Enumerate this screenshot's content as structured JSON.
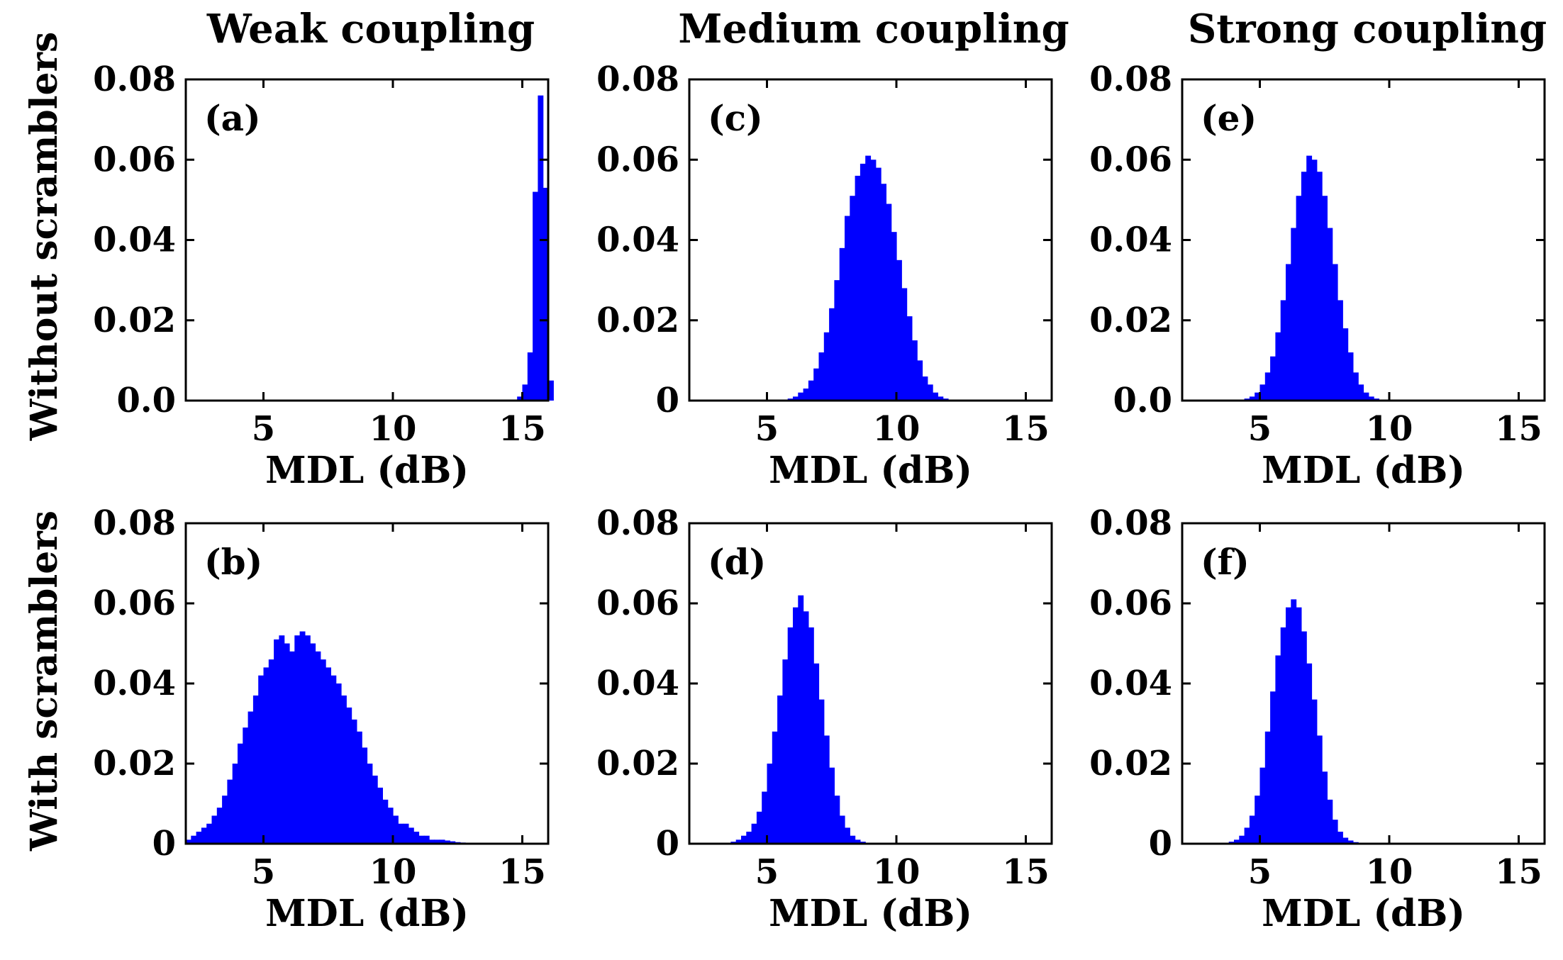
{
  "figure": {
    "column_titles": [
      "Weak coupling",
      "Medium coupling",
      "Strong coupling"
    ],
    "row_labels": [
      "Without scramblers",
      "With scramblers"
    ],
    "bar_color": "#0000ff"
  },
  "chart_data": [
    {
      "type": "bar",
      "panel": "(a)",
      "title": "",
      "xlabel": "MDL (dB)",
      "ylabel": "",
      "xlim": [
        2,
        16
      ],
      "ylim": [
        0,
        0.08
      ],
      "xticks": [
        "5",
        "10",
        "15"
      ],
      "yticks": [
        "0.0",
        "0.02",
        "0.04",
        "0.06",
        "0.08"
      ],
      "bin_width": 0.2,
      "bin_start": 14.8,
      "values": [
        0.001,
        0.004,
        0.012,
        0.052,
        0.076,
        0.053,
        0.005
      ]
    },
    {
      "type": "bar",
      "panel": "(b)",
      "title": "",
      "xlabel": "MDL (dB)",
      "ylabel": "",
      "xlim": [
        2,
        16
      ],
      "ylim": [
        0,
        0.08
      ],
      "xticks": [
        "5",
        "10",
        "15"
      ],
      "yticks": [
        "0",
        "0.02",
        "0.04",
        "0.06",
        "0.08"
      ],
      "bin_width": 0.2,
      "bin_start": 2.0,
      "values": [
        0.001,
        0.002,
        0.003,
        0.004,
        0.005,
        0.007,
        0.009,
        0.012,
        0.016,
        0.02,
        0.025,
        0.029,
        0.033,
        0.037,
        0.042,
        0.044,
        0.046,
        0.051,
        0.052,
        0.05,
        0.048,
        0.052,
        0.053,
        0.052,
        0.05,
        0.048,
        0.046,
        0.044,
        0.042,
        0.04,
        0.037,
        0.034,
        0.031,
        0.028,
        0.024,
        0.02,
        0.017,
        0.014,
        0.011,
        0.009,
        0.007,
        0.005,
        0.005,
        0.004,
        0.003,
        0.002,
        0.002,
        0.001,
        0.001,
        0.001,
        0.0008,
        0.0006,
        0.0004,
        0.0003,
        0.0002
      ]
    },
    {
      "type": "bar",
      "panel": "(c)",
      "title": "",
      "xlabel": "MDL (dB)",
      "ylabel": "",
      "xlim": [
        2,
        16
      ],
      "ylim": [
        0,
        0.08
      ],
      "xticks": [
        "5",
        "10",
        "15"
      ],
      "yticks": [
        "0",
        "0.02",
        "0.04",
        "0.06",
        "0.08"
      ],
      "bin_width": 0.2,
      "bin_start": 5.8,
      "values": [
        0.0005,
        0.001,
        0.002,
        0.003,
        0.005,
        0.008,
        0.012,
        0.017,
        0.023,
        0.03,
        0.038,
        0.046,
        0.051,
        0.056,
        0.059,
        0.061,
        0.06,
        0.058,
        0.054,
        0.049,
        0.042,
        0.035,
        0.028,
        0.021,
        0.015,
        0.01,
        0.006,
        0.004,
        0.002,
        0.001,
        0.0005
      ]
    },
    {
      "type": "bar",
      "panel": "(d)",
      "title": "",
      "xlabel": "MDL (dB)",
      "ylabel": "",
      "xlim": [
        2,
        16
      ],
      "ylim": [
        0,
        0.08
      ],
      "xticks": [
        "5",
        "10",
        "15"
      ],
      "yticks": [
        "0",
        "0.02",
        "0.04",
        "0.06",
        "0.08"
      ],
      "bin_width": 0.2,
      "bin_start": 3.6,
      "values": [
        0.0005,
        0.001,
        0.002,
        0.003,
        0.005,
        0.008,
        0.013,
        0.02,
        0.028,
        0.037,
        0.046,
        0.054,
        0.059,
        0.062,
        0.058,
        0.054,
        0.045,
        0.036,
        0.027,
        0.019,
        0.012,
        0.007,
        0.004,
        0.002,
        0.001,
        0.0005
      ]
    },
    {
      "type": "bar",
      "panel": "(e)",
      "title": "",
      "xlabel": "MDL (dB)",
      "ylabel": "",
      "xlim": [
        2,
        16
      ],
      "ylim": [
        0,
        0.08
      ],
      "xticks": [
        "5",
        "10",
        "15"
      ],
      "yticks": [
        "0.0",
        "0.02",
        "0.04",
        "0.06",
        "0.08"
      ],
      "bin_width": 0.2,
      "bin_start": 4.4,
      "values": [
        0.0005,
        0.001,
        0.002,
        0.004,
        0.007,
        0.011,
        0.017,
        0.025,
        0.034,
        0.043,
        0.051,
        0.057,
        0.061,
        0.06,
        0.057,
        0.051,
        0.043,
        0.034,
        0.025,
        0.018,
        0.012,
        0.007,
        0.004,
        0.002,
        0.001,
        0.0005
      ]
    },
    {
      "type": "bar",
      "panel": "(f)",
      "title": "",
      "xlabel": "MDL (dB)",
      "ylabel": "",
      "xlim": [
        2,
        16
      ],
      "ylim": [
        0,
        0.08
      ],
      "xticks": [
        "5",
        "10",
        "15"
      ],
      "yticks": [
        "0",
        "0.02",
        "0.04",
        "0.06",
        "0.08"
      ],
      "bin_width": 0.2,
      "bin_start": 3.8,
      "values": [
        0.0005,
        0.001,
        0.002,
        0.004,
        0.007,
        0.012,
        0.019,
        0.028,
        0.038,
        0.047,
        0.054,
        0.059,
        0.061,
        0.059,
        0.053,
        0.045,
        0.036,
        0.027,
        0.018,
        0.011,
        0.006,
        0.003,
        0.0015,
        0.0008,
        0.0004
      ]
    }
  ]
}
